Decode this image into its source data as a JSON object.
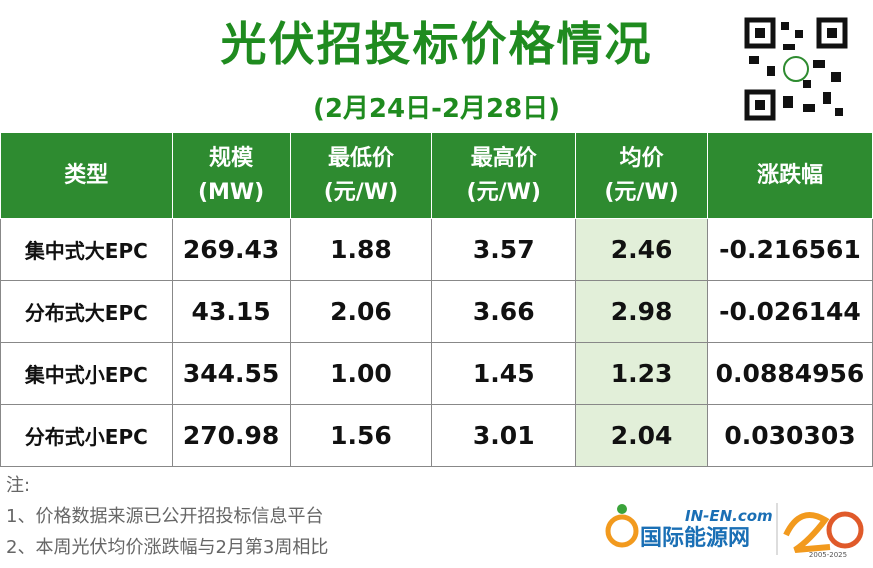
{
  "header": {
    "title": "光伏招投标价格情况",
    "subtitle": "(2月24日-2月28日)"
  },
  "table": {
    "columns": [
      [
        "类型"
      ],
      [
        "规模",
        "(MW)"
      ],
      [
        "最低价",
        "(元/W)"
      ],
      [
        "最高价",
        "(元/W)"
      ],
      [
        "均价",
        "(元/W)"
      ],
      [
        "涨跌幅"
      ]
    ],
    "rows": [
      [
        "集中式大EPC",
        "269.43",
        "1.88",
        "3.57",
        "2.46",
        "-0.216561"
      ],
      [
        "分布式大EPC",
        "43.15",
        "2.06",
        "3.66",
        "2.98",
        "-0.026144"
      ],
      [
        "集中式小EPC",
        "344.55",
        "1.00",
        "1.45",
        "1.23",
        "0.0884956"
      ],
      [
        "分布式小EPC",
        "270.98",
        "1.56",
        "3.01",
        "2.04",
        "0.030303"
      ]
    ]
  },
  "notes": {
    "label": "注:",
    "lines": [
      "1、价格数据来源已公开招投标信息平台",
      "2、本周光伏均价涨跌幅与2月第3周相比"
    ]
  },
  "logo": {
    "site": "IN-EN.com",
    "name": "国际能源网",
    "years": "2005-2025"
  }
}
